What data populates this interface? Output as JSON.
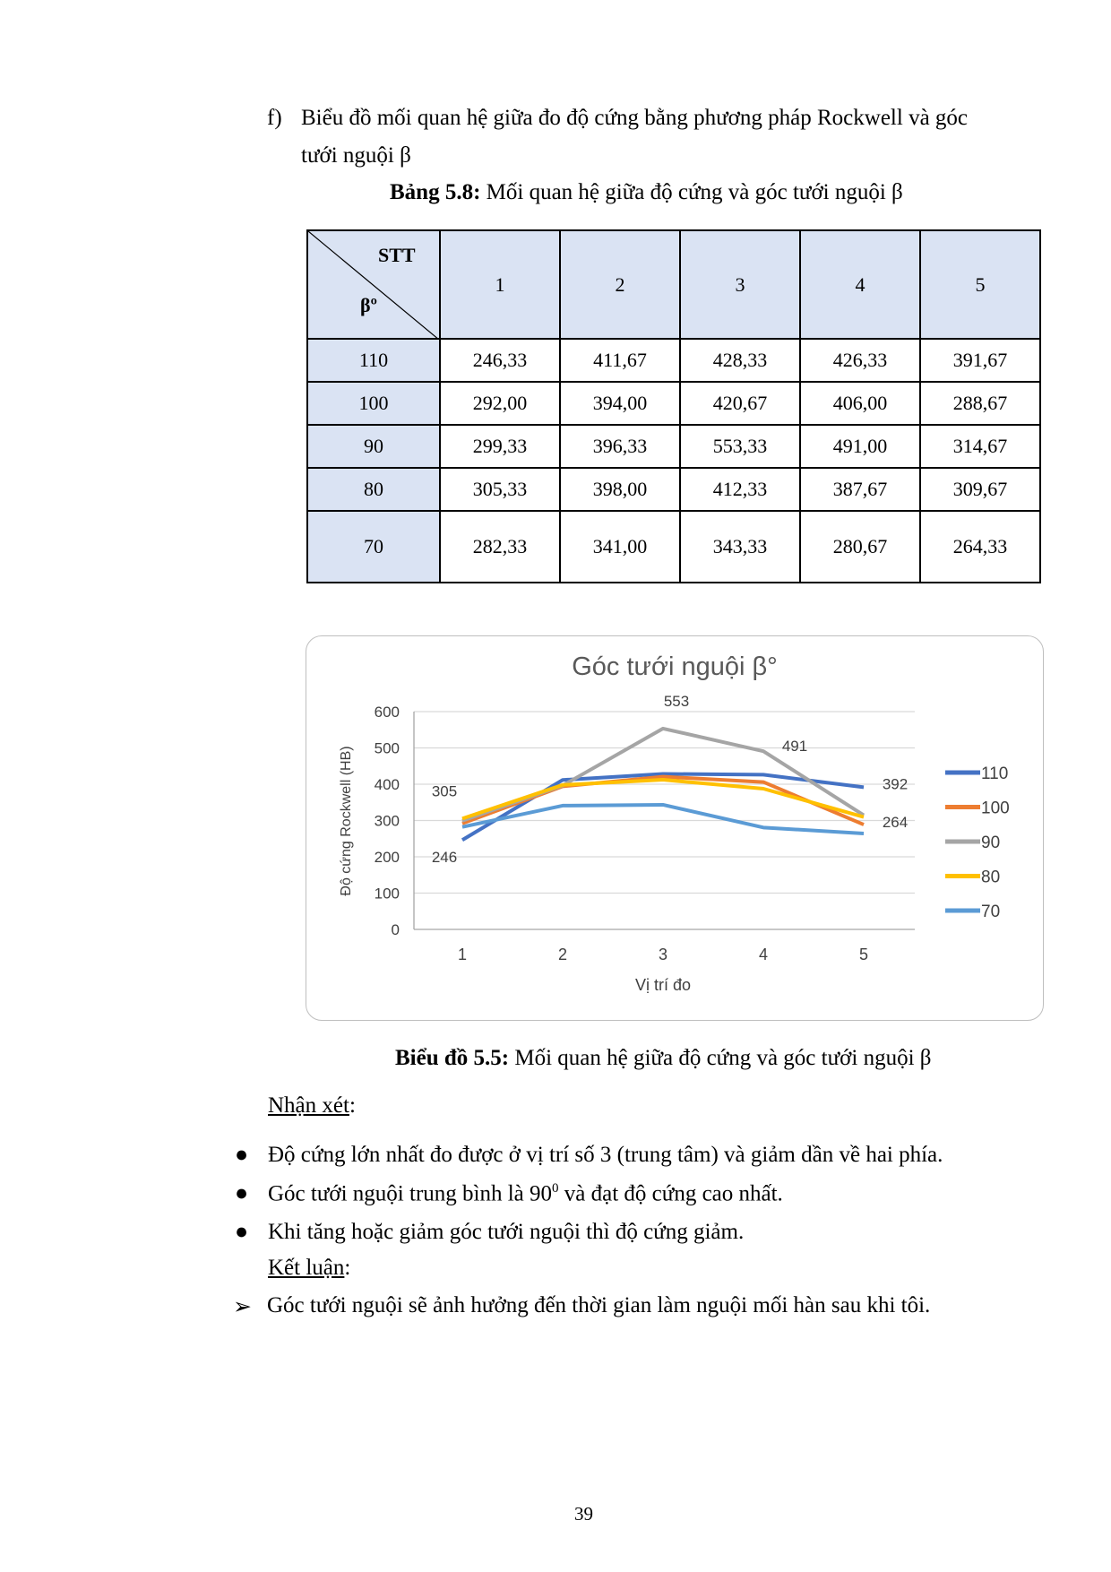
{
  "heading": {
    "marker": "f)",
    "line1": "Biểu đồ mối quan hệ giữa đo độ cứng bằng phương pháp Rockwell và góc",
    "line2": "tưới nguội β"
  },
  "table_caption": {
    "label": "Bảng 5.8:",
    "text": " Mối quan hệ giữa độ cứng và góc tưới nguội β"
  },
  "table": {
    "corner_top": "STT",
    "corner_bottom": "βº",
    "columns": [
      "1",
      "2",
      "3",
      "4",
      "5"
    ],
    "rows": [
      {
        "beta": "110",
        "values": [
          "246,33",
          "411,67",
          "428,33",
          "426,33",
          "391,67"
        ]
      },
      {
        "beta": "100",
        "values": [
          "292,00",
          "394,00",
          "420,67",
          "406,00",
          "288,67"
        ]
      },
      {
        "beta": "90",
        "values": [
          "299,33",
          "396,33",
          "553,33",
          "491,00",
          "314,67"
        ]
      },
      {
        "beta": "80",
        "values": [
          "305,33",
          "398,00",
          "412,33",
          "387,67",
          "309,67"
        ]
      },
      {
        "beta": "70",
        "values": [
          "282,33",
          "341,00",
          "343,33",
          "280,67",
          "264,33"
        ]
      }
    ]
  },
  "chart_data": {
    "type": "line",
    "title": "Góc tưới nguội β°",
    "xlabel": "Vị trí đo",
    "ylabel": "Độ cứng Rockwell (HB)",
    "categories": [
      "1",
      "2",
      "3",
      "4",
      "5"
    ],
    "ylim": [
      0,
      600
    ],
    "yticks": [
      "0",
      "100",
      "200",
      "300",
      "400",
      "500",
      "600"
    ],
    "grid": true,
    "legend_position": "right",
    "series": [
      {
        "name": "110",
        "color": "#4472c4",
        "values": [
          246.33,
          411.67,
          428.33,
          426.33,
          391.67
        ]
      },
      {
        "name": "100",
        "color": "#ed7d31",
        "values": [
          292.0,
          394.0,
          420.67,
          406.0,
          288.67
        ]
      },
      {
        "name": "90",
        "color": "#a5a5a5",
        "values": [
          299.33,
          396.33,
          553.33,
          491.0,
          314.67
        ]
      },
      {
        "name": "80",
        "color": "#ffc000",
        "values": [
          305.33,
          398.0,
          412.33,
          387.67,
          309.67
        ]
      },
      {
        "name": "70",
        "color": "#5b9bd5",
        "values": [
          282.33,
          341.0,
          343.33,
          280.67,
          264.33
        ]
      }
    ],
    "annotations": [
      {
        "text": "305",
        "x": 1,
        "y": 305.33
      },
      {
        "text": "246",
        "x": 1,
        "y": 246.33
      },
      {
        "text": "553",
        "x": 3,
        "y": 553.33
      },
      {
        "text": "491",
        "x": 4,
        "y": 491.0
      },
      {
        "text": "392",
        "x": 5,
        "y": 391.67
      },
      {
        "text": "264",
        "x": 5,
        "y": 264.33
      }
    ]
  },
  "chart_caption": {
    "label": "Biểu đồ 5.5:",
    "text": " Mối quan hệ giữa độ cứng và góc tưới nguội β"
  },
  "remarks": {
    "title": "Nhận xét",
    "colon": ":",
    "bullets": [
      "Độ cứng lớn nhất đo được ở vị trí số 3 (trung tâm) và giảm dần về hai phía.",
      "Góc tưới nguội trung bình là 90",
      "Khi tăng hoặc giảm góc tưới nguội thì độ cứng giảm."
    ],
    "bullet2_sup": "0",
    "bullet2_rest": " và đạt độ cứng cao nhất."
  },
  "conclusion": {
    "title": "Kết luận",
    "colon": ":",
    "items": [
      "Góc tưới nguội sẽ ảnh hưởng đến thời gian làm nguội mối hàn sau khi tôi."
    ]
  },
  "page_number": "39"
}
